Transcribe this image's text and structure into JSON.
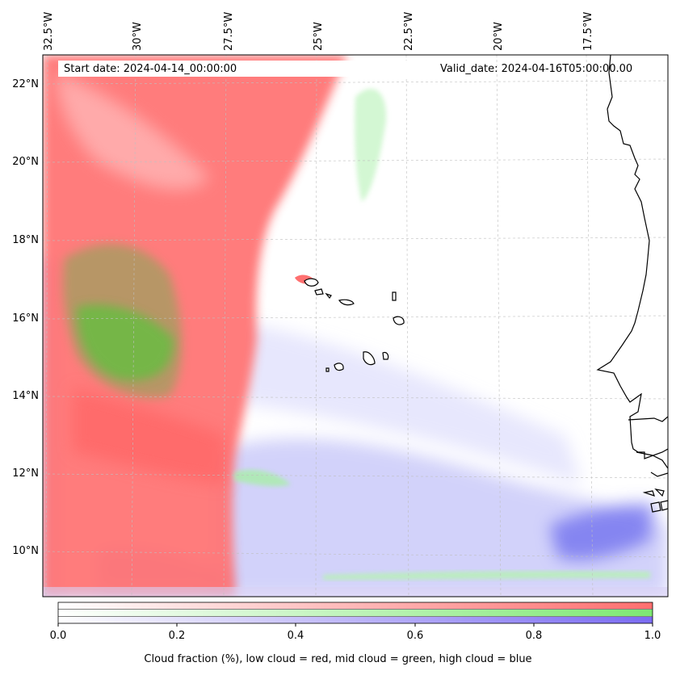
{
  "header": {
    "start_date": "Start date: 2024-04-14_00:00:00",
    "valid_date": "Valid_date: 2024-04-16T05:00:00.00"
  },
  "map": {
    "longitude_labels": [
      "32.5°W",
      "30°W",
      "27.5°W",
      "25°W",
      "22.5°W",
      "20°W",
      "17.5°W"
    ],
    "latitude_labels": [
      "22°N",
      "20°N",
      "18°N",
      "16°N",
      "14°N",
      "12°N",
      "10°N"
    ],
    "layers": [
      {
        "name": "low cloud",
        "color": "#ff6e6e"
      },
      {
        "name": "mid cloud",
        "color": "#73d955"
      },
      {
        "name": "high cloud",
        "color": "#6a6aef"
      }
    ],
    "coastline_color": "#000000"
  },
  "colorbar": {
    "ticks": [
      "0.0",
      "0.2",
      "0.4",
      "0.6",
      "0.8",
      "1.0"
    ],
    "caption": "Cloud fraction (%), low cloud = red, mid cloud = green, high cloud = blue",
    "colors": {
      "low": "#ff6f6f",
      "mid": "#7de872",
      "high": "#7b6cf2"
    }
  }
}
